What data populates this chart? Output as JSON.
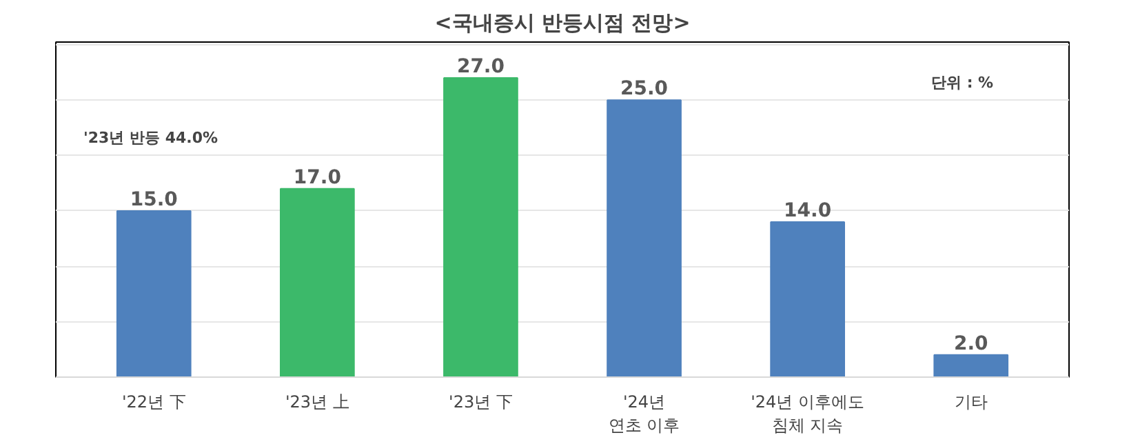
{
  "chart_data": {
    "type": "bar",
    "title": "<국내증시 반등시점 전망>",
    "categories": [
      "'22년 下",
      "'23년 上",
      "'23년 下",
      "'24년\n연초 이후",
      "'24년 이후에도\n침체 지속",
      "기타"
    ],
    "values": [
      15.0,
      17.0,
      27.0,
      25.0,
      14.0,
      2.0
    ],
    "colors": [
      "#4f81bd",
      "#3cb96a",
      "#3cb96a",
      "#4f81bd",
      "#4f81bd",
      "#4f81bd"
    ],
    "value_labels": [
      "15.0",
      "17.0",
      "27.0",
      "25.0",
      "14.0",
      "2.0"
    ],
    "tick_labels": "x",
    "grid": "y",
    "annotations": [
      "단위 : %",
      "'23년 반등 44.0%"
    ]
  }
}
